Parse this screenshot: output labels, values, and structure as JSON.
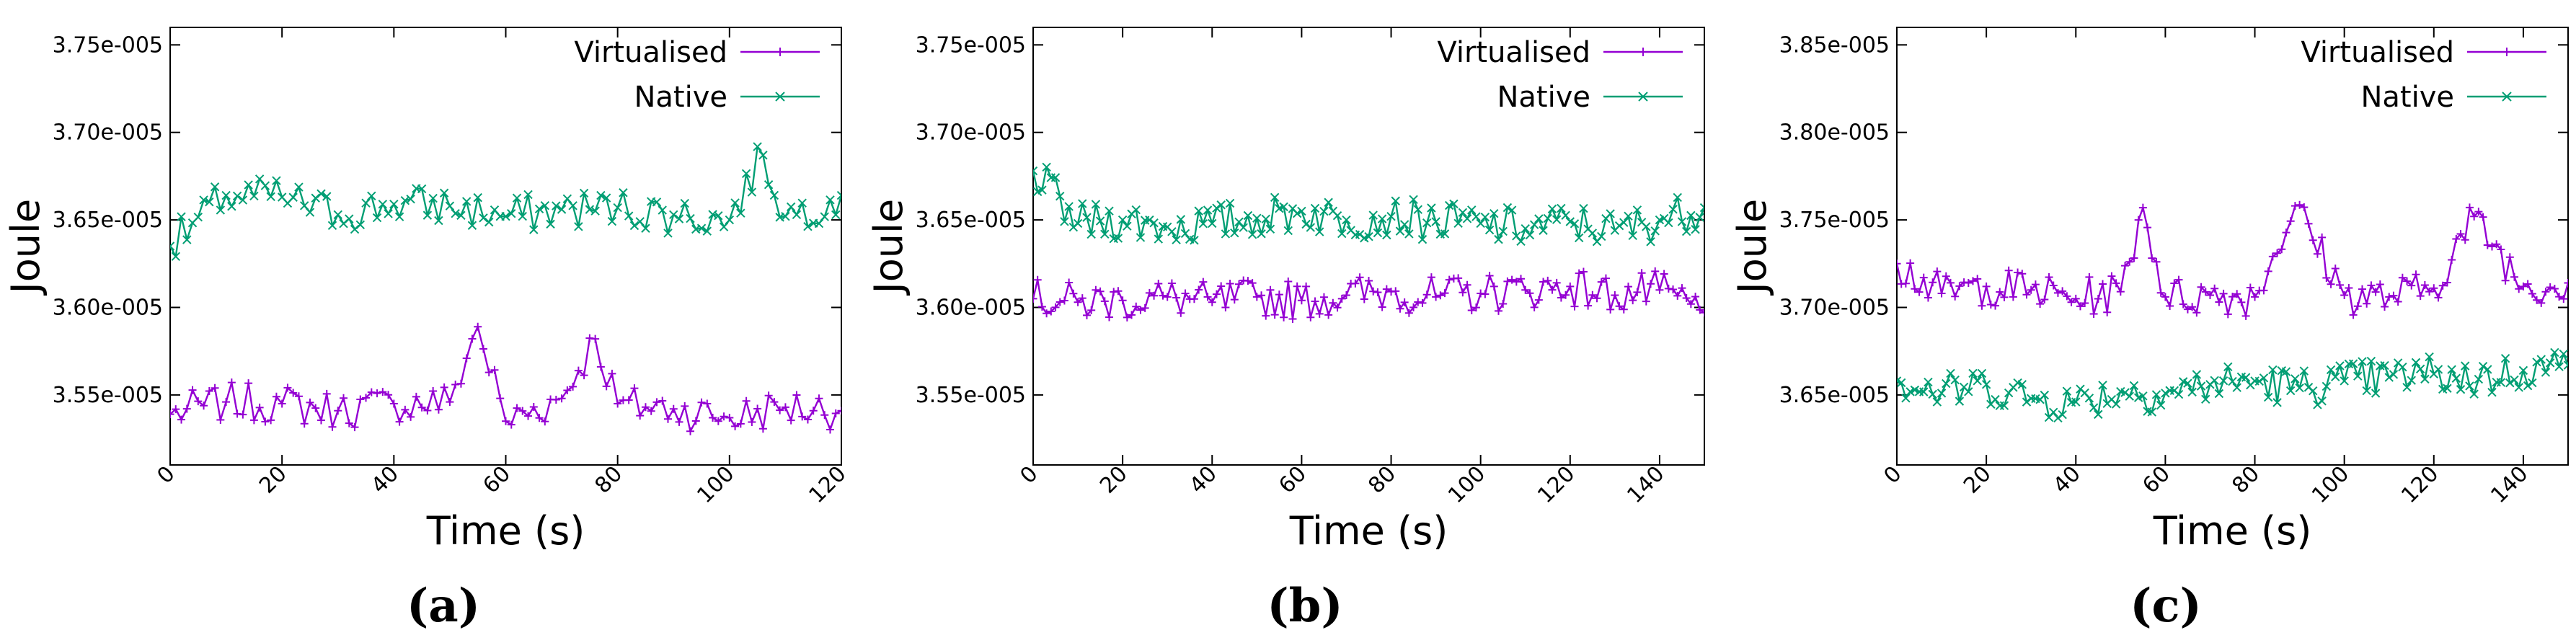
{
  "colors": {
    "virtualised": "#9400d3",
    "native": "#009e73"
  },
  "chart_data": [
    {
      "type": "line",
      "panel_label": "(a)",
      "xlabel": "Time (s)",
      "ylabel": "Joule",
      "xlim": [
        0,
        120
      ],
      "ylim": [
        3.51e-05,
        3.76e-05
      ],
      "xticks": [
        0,
        20,
        40,
        60,
        80,
        100,
        120
      ],
      "yticks": [
        3.55e-05,
        3.6e-05,
        3.65e-05,
        3.7e-05,
        3.75e-05
      ],
      "ytick_labels": [
        "3.55e-005",
        "3.60e-005",
        "3.65e-005",
        "3.70e-005",
        "3.75e-005"
      ],
      "legend_position": "top-right",
      "series": [
        {
          "name": "Virtualised",
          "marker": "plus",
          "color": "#9400d3",
          "x": [
            0,
            10,
            20,
            30,
            40,
            50,
            55,
            60,
            70,
            76,
            80,
            90,
            100,
            110,
            120
          ],
          "values": [
            3.539e-05,
            3.546e-05,
            3.545e-05,
            3.541e-05,
            3.545e-05,
            3.546e-05,
            3.589e-05,
            3.535e-05,
            3.548e-05,
            3.582e-05,
            3.545e-05,
            3.542e-05,
            3.537e-05,
            3.543e-05,
            3.541e-05
          ]
        },
        {
          "name": "Native",
          "marker": "cross",
          "color": "#009e73",
          "x": [
            0,
            10,
            20,
            30,
            40,
            50,
            60,
            70,
            80,
            90,
            100,
            106,
            110,
            120
          ],
          "values": [
            3.635e-05,
            3.664e-05,
            3.663e-05,
            3.653e-05,
            3.659e-05,
            3.658e-05,
            3.652e-05,
            3.656e-05,
            3.657e-05,
            3.653e-05,
            3.65e-05,
            3.687e-05,
            3.652e-05,
            3.664e-05
          ]
        }
      ]
    },
    {
      "type": "line",
      "panel_label": "(b)",
      "xlabel": "Time (s)",
      "ylabel": "Joule",
      "xlim": [
        0,
        150
      ],
      "ylim": [
        3.51e-05,
        3.76e-05
      ],
      "xticks": [
        0,
        20,
        40,
        60,
        80,
        100,
        120,
        140
      ],
      "yticks": [
        3.55e-05,
        3.6e-05,
        3.65e-05,
        3.7e-05,
        3.75e-05
      ],
      "ytick_labels": [
        "3.55e-005",
        "3.60e-005",
        "3.65e-005",
        "3.70e-005",
        "3.75e-005"
      ],
      "legend_position": "top-right",
      "series": [
        {
          "name": "Virtualised",
          "marker": "plus",
          "color": "#9400d3",
          "x": [
            0,
            10,
            20,
            30,
            40,
            50,
            60,
            70,
            80,
            90,
            100,
            110,
            120,
            130,
            140,
            150
          ],
          "values": [
            3.605e-05,
            3.603e-05,
            3.604e-05,
            3.606e-05,
            3.603e-05,
            3.606e-05,
            3.604e-05,
            3.607e-05,
            3.609e-05,
            3.606e-05,
            3.608e-05,
            3.61e-05,
            3.612e-05,
            3.607e-05,
            3.61e-05,
            3.597e-05
          ]
        },
        {
          "name": "Native",
          "marker": "cross",
          "color": "#009e73",
          "x": [
            0,
            10,
            20,
            30,
            40,
            50,
            60,
            70,
            80,
            90,
            100,
            110,
            120,
            130,
            140,
            150
          ],
          "values": [
            3.678e-05,
            3.648e-05,
            3.65e-05,
            3.646e-05,
            3.648e-05,
            3.651e-05,
            3.655e-05,
            3.65e-05,
            3.652e-05,
            3.649e-05,
            3.648e-05,
            3.645e-05,
            3.649e-05,
            3.644e-05,
            3.65e-05,
            3.657e-05
          ]
        }
      ]
    },
    {
      "type": "line",
      "panel_label": "(c)",
      "xlabel": "Time (s)",
      "ylabel": "Joule",
      "xlim": [
        0,
        150
      ],
      "ylim": [
        3.61e-05,
        3.86e-05
      ],
      "xticks": [
        0,
        20,
        40,
        60,
        80,
        100,
        120,
        140
      ],
      "yticks": [
        3.65e-05,
        3.7e-05,
        3.75e-05,
        3.8e-05,
        3.85e-05
      ],
      "ytick_labels": [
        "3.65e-005",
        "3.70e-005",
        "3.75e-005",
        "3.80e-005",
        "3.85e-005"
      ],
      "legend_position": "top-right",
      "series": [
        {
          "name": "Virtualised",
          "marker": "plus",
          "color": "#9400d3",
          "x": [
            0,
            10,
            20,
            30,
            40,
            50,
            55,
            60,
            70,
            80,
            89,
            100,
            110,
            120,
            129,
            140,
            150
          ],
          "values": [
            3.725e-05,
            3.708e-05,
            3.712e-05,
            3.71e-05,
            3.705e-05,
            3.709e-05,
            3.757e-05,
            3.706e-05,
            3.707e-05,
            3.706e-05,
            3.758e-05,
            3.707e-05,
            3.706e-05,
            3.711e-05,
            3.752e-05,
            3.712e-05,
            3.714e-05
          ]
        },
        {
          "name": "Native",
          "marker": "cross",
          "color": "#009e73",
          "x": [
            0,
            10,
            20,
            30,
            40,
            50,
            60,
            70,
            80,
            90,
            100,
            110,
            120,
            130,
            140,
            150
          ],
          "values": [
            3.658e-05,
            3.651e-05,
            3.656e-05,
            3.648e-05,
            3.646e-05,
            3.652e-05,
            3.651e-05,
            3.656e-05,
            3.658e-05,
            3.654e-05,
            3.658e-05,
            3.66e-05,
            3.662e-05,
            3.659e-05,
            3.664e-05,
            3.667e-05
          ]
        }
      ]
    }
  ]
}
